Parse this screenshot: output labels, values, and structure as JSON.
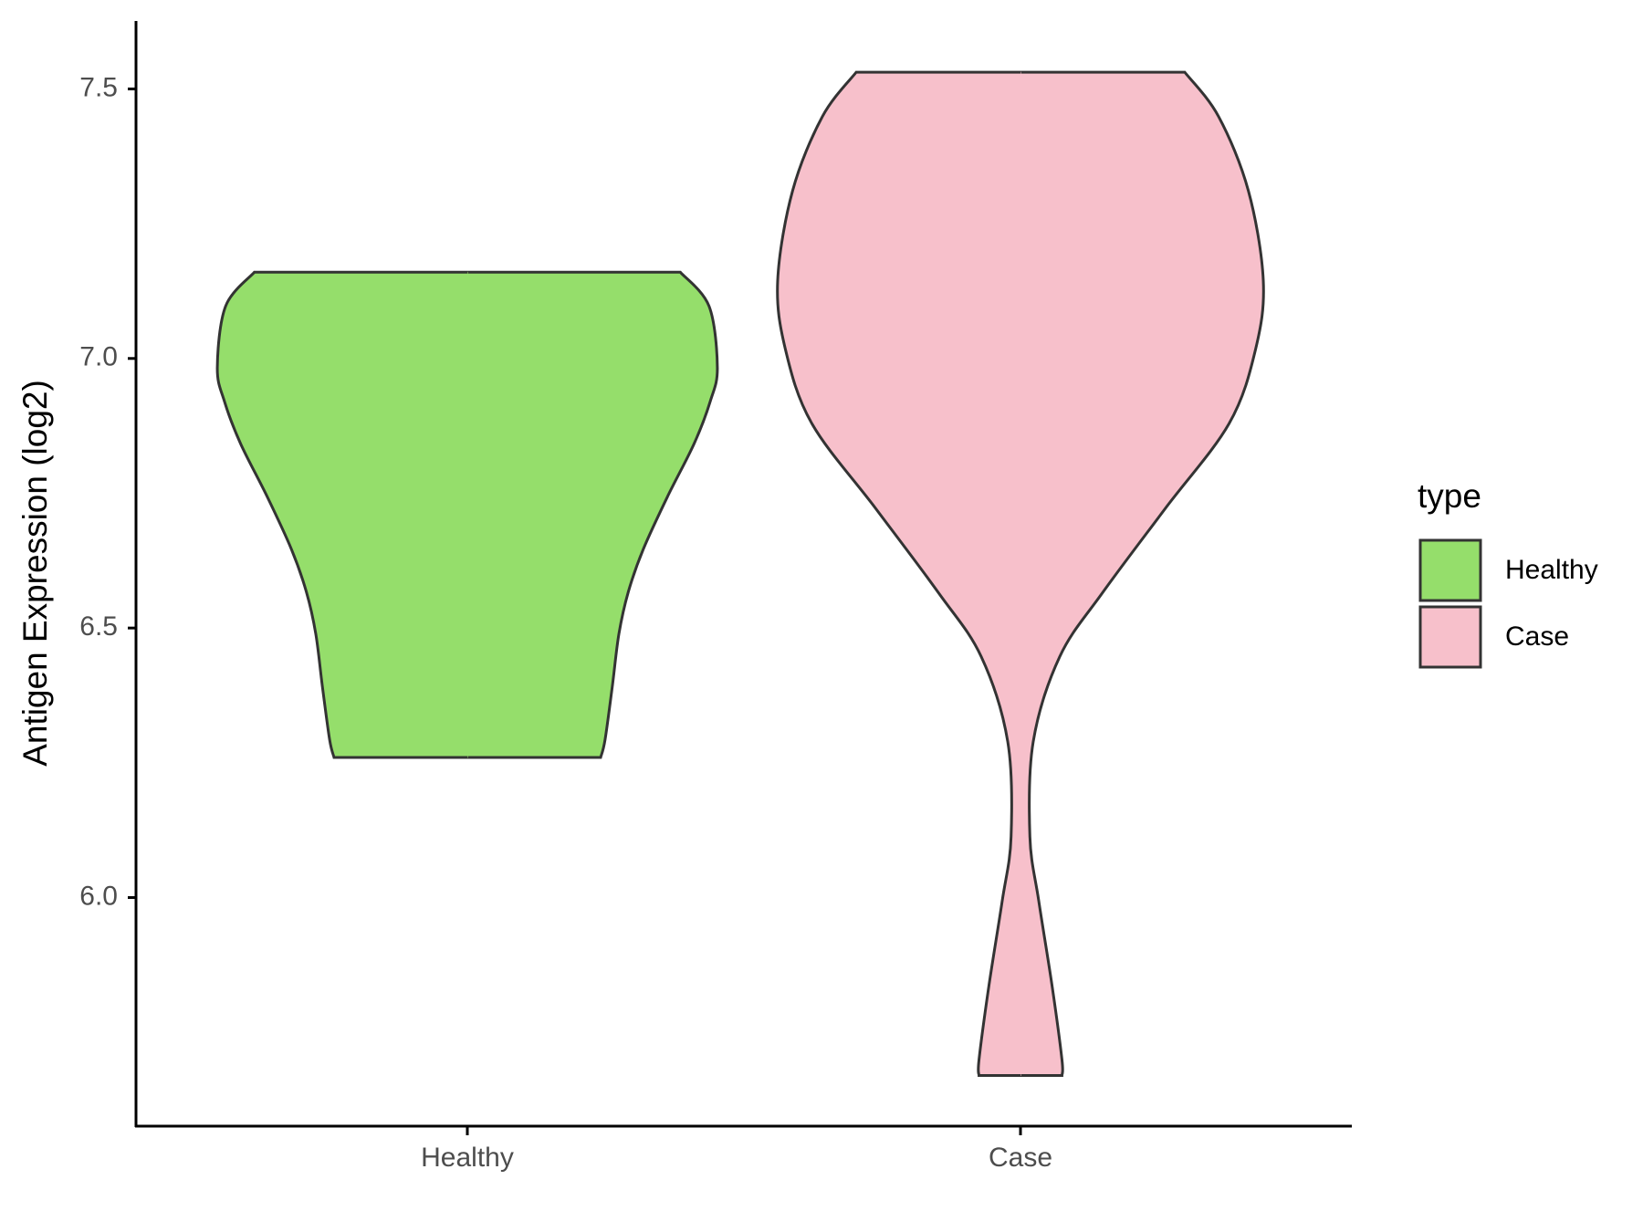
{
  "chart_data": {
    "type": "violin",
    "y_label": "Antigen Expression (log2)",
    "legend_title": "type",
    "legend": "right",
    "categories": [
      "Healthy",
      "Case"
    ],
    "series": [
      {
        "name": "Healthy",
        "color": "#95DE6B",
        "y": [
          7.16,
          7.097,
          6.983,
          6.92,
          6.842,
          6.744,
          6.646,
          6.567,
          6.489,
          6.391,
          6.293,
          6.26
        ],
        "width": [
          0.385,
          0.437,
          0.452,
          0.439,
          0.41,
          0.362,
          0.318,
          0.291,
          0.274,
          0.262,
          0.249,
          0.241
        ]
      },
      {
        "name": "Case",
        "color": "#F7C0CB",
        "y": [
          7.531,
          7.449,
          7.311,
          7.144,
          7.017,
          6.879,
          6.722,
          6.565,
          6.447,
          6.289,
          6.113,
          5.994,
          5.837,
          5.699,
          5.67
        ],
        "width": [
          0.297,
          0.358,
          0.412,
          0.439,
          0.425,
          0.377,
          0.262,
          0.148,
          0.071,
          0.023,
          0.017,
          0.033,
          0.057,
          0.075,
          0.075
        ]
      }
    ],
    "ylim": [
      5.576,
      7.626
    ],
    "yticks": [
      {
        "value": 6,
        "label": "6.0"
      },
      6.5,
      {
        "value": 7,
        "label": "7.0"
      },
      7.5
    ]
  }
}
